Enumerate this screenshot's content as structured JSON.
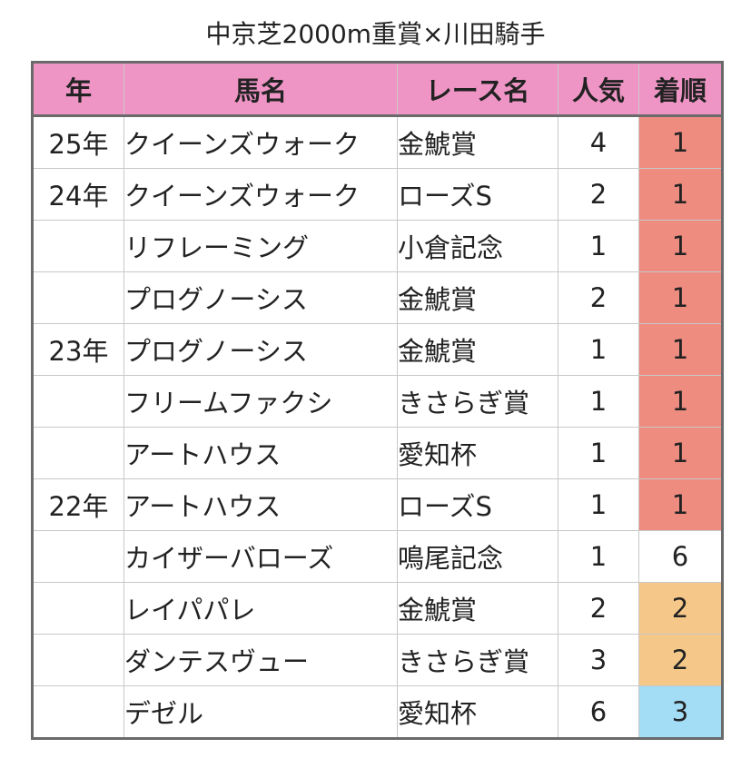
{
  "title": "中京芝2000m重賞×川田騎手",
  "colors": {
    "header_bg": "#ef95c6",
    "rank_1": "#ee8c80",
    "rank_2": "#f5c88a",
    "rank_3": "#a3dcf5",
    "rank_other": "#ffffff"
  },
  "table": {
    "headers": [
      "年",
      "馬名",
      "レース名",
      "人気",
      "着順"
    ],
    "rows": [
      {
        "year": "25年",
        "horse": "クイーンズウォーク",
        "race": "金鯱賞",
        "popularity": "4",
        "finish": "1",
        "finish_color": "#ee8c80"
      },
      {
        "year": "24年",
        "horse": "クイーンズウォーク",
        "race": "ローズS",
        "popularity": "2",
        "finish": "1",
        "finish_color": "#ee8c80"
      },
      {
        "year": "",
        "horse": "リフレーミング",
        "race": "小倉記念",
        "popularity": "1",
        "finish": "1",
        "finish_color": "#ee8c80"
      },
      {
        "year": "",
        "horse": "プログノーシス",
        "race": "金鯱賞",
        "popularity": "2",
        "finish": "1",
        "finish_color": "#ee8c80"
      },
      {
        "year": "23年",
        "horse": "プログノーシス",
        "race": "金鯱賞",
        "popularity": "1",
        "finish": "1",
        "finish_color": "#ee8c80"
      },
      {
        "year": "",
        "horse": "フリームファクシ",
        "race": "きさらぎ賞",
        "popularity": "1",
        "finish": "1",
        "finish_color": "#ee8c80"
      },
      {
        "year": "",
        "horse": "アートハウス",
        "race": "愛知杯",
        "popularity": "1",
        "finish": "1",
        "finish_color": "#ee8c80"
      },
      {
        "year": "22年",
        "horse": "アートハウス",
        "race": "ローズS",
        "popularity": "1",
        "finish": "1",
        "finish_color": "#ee8c80"
      },
      {
        "year": "",
        "horse": "カイザーバローズ",
        "race": "鳴尾記念",
        "popularity": "1",
        "finish": "6",
        "finish_color": "#ffffff"
      },
      {
        "year": "",
        "horse": "レイパパレ",
        "race": "金鯱賞",
        "popularity": "2",
        "finish": "2",
        "finish_color": "#f5c88a"
      },
      {
        "year": "",
        "horse": "ダンテスヴュー",
        "race": "きさらぎ賞",
        "popularity": "3",
        "finish": "2",
        "finish_color": "#f5c88a"
      },
      {
        "year": "",
        "horse": "デゼル",
        "race": "愛知杯",
        "popularity": "6",
        "finish": "3",
        "finish_color": "#a3dcf5"
      }
    ]
  }
}
